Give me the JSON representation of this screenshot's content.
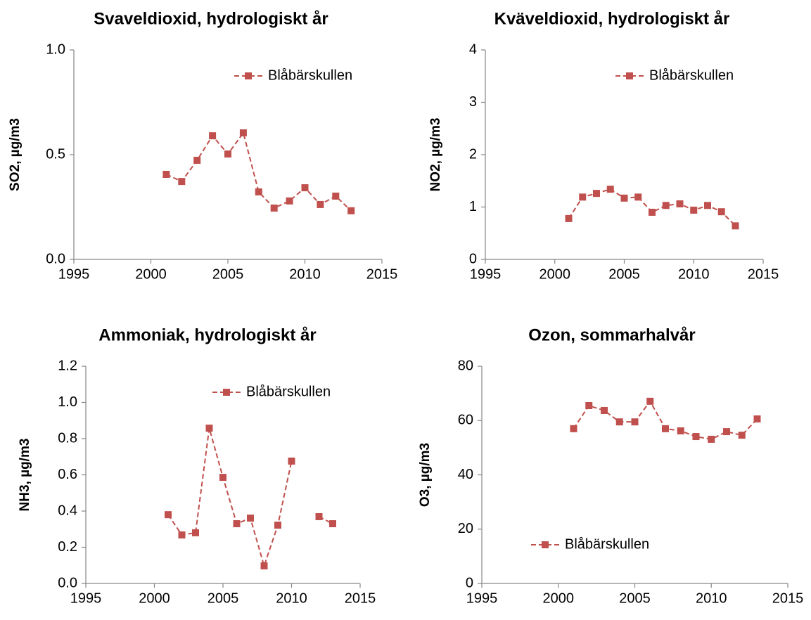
{
  "chart_data": [
    {
      "type": "line",
      "title": "Svaveldioxid, hydrologiskt år",
      "ylabel": "SO2, µg/m3",
      "x": [
        2001,
        2002,
        2003,
        2004,
        2005,
        2006,
        2007,
        2008,
        2009,
        2010,
        2011,
        2012,
        2013
      ],
      "series": [
        {
          "name": "Blåbärskullen",
          "color": "#c0504d",
          "values": [
            0.406,
            0.372,
            0.473,
            0.59,
            0.503,
            0.604,
            0.322,
            0.245,
            0.279,
            0.342,
            0.262,
            0.302,
            0.232
          ]
        }
      ],
      "xlim": [
        1995,
        2015
      ],
      "xticks": [
        1995,
        2000,
        2005,
        2010,
        2015
      ],
      "ylim": [
        0,
        1
      ],
      "yticks": [
        {
          "value": 0,
          "label": "0.0"
        },
        0.5,
        {
          "value": 1,
          "label": "1.0"
        }
      ],
      "legend": "upper right"
    },
    {
      "type": "line",
      "title": "Kväveldioxid, hydrologiskt år",
      "ylabel": "NO2, µg/m3",
      "x": [
        2001,
        2002,
        2003,
        2004,
        2005,
        2006,
        2007,
        2008,
        2009,
        2010,
        2011,
        2012,
        2013
      ],
      "series": [
        {
          "name": "Blåbärskullen",
          "color": "#c0504d",
          "values": [
            0.78,
            1.19,
            1.26,
            1.34,
            1.17,
            1.19,
            0.9,
            1.03,
            1.06,
            0.94,
            1.03,
            0.91,
            0.64
          ]
        }
      ],
      "xlim": [
        1995,
        2015
      ],
      "xticks": [
        1995,
        2000,
        2005,
        2010,
        2015
      ],
      "ylim": [
        0,
        4
      ],
      "yticks": [
        0,
        1,
        2,
        3,
        4
      ],
      "legend": "upper right"
    },
    {
      "type": "line",
      "title": "Ammoniak, hydrologiskt år",
      "ylabel": "NH3, µg/m3",
      "x": [
        2001,
        2002,
        2003,
        2004,
        2005,
        2006,
        2007,
        2008,
        2009,
        2010,
        2011,
        2012,
        2013
      ],
      "series": [
        {
          "name": "Blåbärskullen",
          "color": "#c0504d",
          "values": [
            0.38,
            0.268,
            0.28,
            0.858,
            0.586,
            0.33,
            0.361,
            0.097,
            0.322,
            0.676,
            null,
            0.369,
            0.33
          ]
        }
      ],
      "xlim": [
        1995,
        2015
      ],
      "xticks": [
        1995,
        2000,
        2005,
        2010,
        2015
      ],
      "ylim": [
        0,
        1.2
      ],
      "yticks": [
        {
          "value": 0,
          "label": "0.0"
        },
        0.2,
        0.4,
        0.6,
        0.8,
        {
          "value": 1,
          "label": "1.0"
        },
        1.2
      ],
      "legend": "upper right"
    },
    {
      "type": "line",
      "title": "Ozon, sommarhalvår",
      "ylabel": "O3, µg/m3",
      "x": [
        2001,
        2002,
        2003,
        2004,
        2005,
        2006,
        2007,
        2008,
        2009,
        2010,
        2011,
        2012,
        2013
      ],
      "series": [
        {
          "name": "Blåbärskullen",
          "color": "#c0504d",
          "values": [
            57.0,
            65.5,
            63.7,
            59.5,
            59.5,
            67.1,
            57.0,
            56.2,
            54.1,
            53.1,
            55.9,
            54.6,
            60.6
          ]
        }
      ],
      "xlim": [
        1995,
        2015
      ],
      "xticks": [
        1995,
        2000,
        2005,
        2010,
        2015
      ],
      "ylim": [
        0,
        80
      ],
      "yticks": [
        0,
        20,
        40,
        60,
        80
      ],
      "legend": "lower left"
    }
  ]
}
